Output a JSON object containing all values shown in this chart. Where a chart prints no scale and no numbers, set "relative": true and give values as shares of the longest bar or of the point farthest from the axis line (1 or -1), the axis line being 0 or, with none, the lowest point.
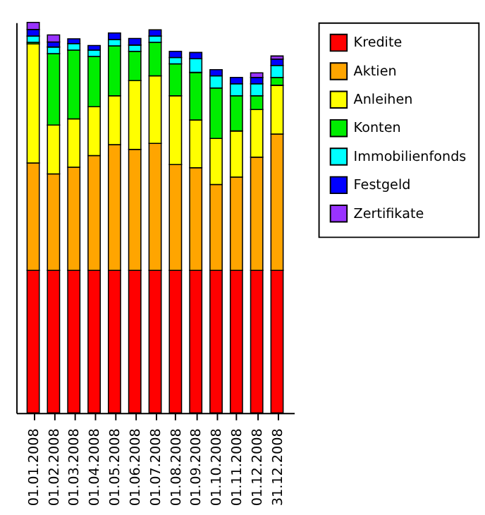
{
  "chart_data": {
    "type": "bar",
    "stacked": true,
    "relative": true,
    "legend": "right",
    "categories": [
      "01.01.2008",
      "01.02.2008",
      "01.03.2008",
      "01.04.2008",
      "01.05.2008",
      "01.06.2008",
      "01.07.2008",
      "01.08.2008",
      "01.09.2008",
      "01.10.2008",
      "01.11.2008",
      "01.12.2008",
      "31.12.2008"
    ],
    "series": [
      {
        "name": "Kredite",
        "color": "#ff0000",
        "values": [
          0.365,
          0.365,
          0.365,
          0.365,
          0.365,
          0.365,
          0.365,
          0.365,
          0.365,
          0.365,
          0.365,
          0.365,
          0.365
        ]
      },
      {
        "name": "Aktien",
        "color": "#ffa500",
        "values": [
          0.275,
          0.247,
          0.264,
          0.294,
          0.322,
          0.31,
          0.325,
          0.271,
          0.263,
          0.22,
          0.239,
          0.29,
          0.349
        ]
      },
      {
        "name": "Anleihen",
        "color": "#ffff00",
        "values": [
          0.305,
          0.125,
          0.124,
          0.125,
          0.125,
          0.176,
          0.173,
          0.176,
          0.122,
          0.118,
          0.118,
          0.122,
          0.125
        ]
      },
      {
        "name": "Konten",
        "color": "#00ee00",
        "values": [
          0.004,
          0.183,
          0.176,
          0.129,
          0.128,
          0.075,
          0.086,
          0.082,
          0.122,
          0.129,
          0.09,
          0.035,
          0.02
        ]
      },
      {
        "name": "Immobilienfonds",
        "color": "#00ffff",
        "values": [
          0.016,
          0.017,
          0.017,
          0.016,
          0.016,
          0.016,
          0.016,
          0.016,
          0.035,
          0.031,
          0.031,
          0.031,
          0.031
        ]
      },
      {
        "name": "Festgeld",
        "color": "#0000ff",
        "values": [
          0.017,
          0.013,
          0.012,
          0.012,
          0.017,
          0.017,
          0.016,
          0.016,
          0.016,
          0.016,
          0.016,
          0.016,
          0.016
        ]
      },
      {
        "name": "Zertifikate",
        "color": "#9933ff",
        "values": [
          0.018,
          0.018,
          null,
          null,
          null,
          null,
          null,
          null,
          null,
          null,
          null,
          0.012,
          0.008
        ]
      }
    ]
  }
}
